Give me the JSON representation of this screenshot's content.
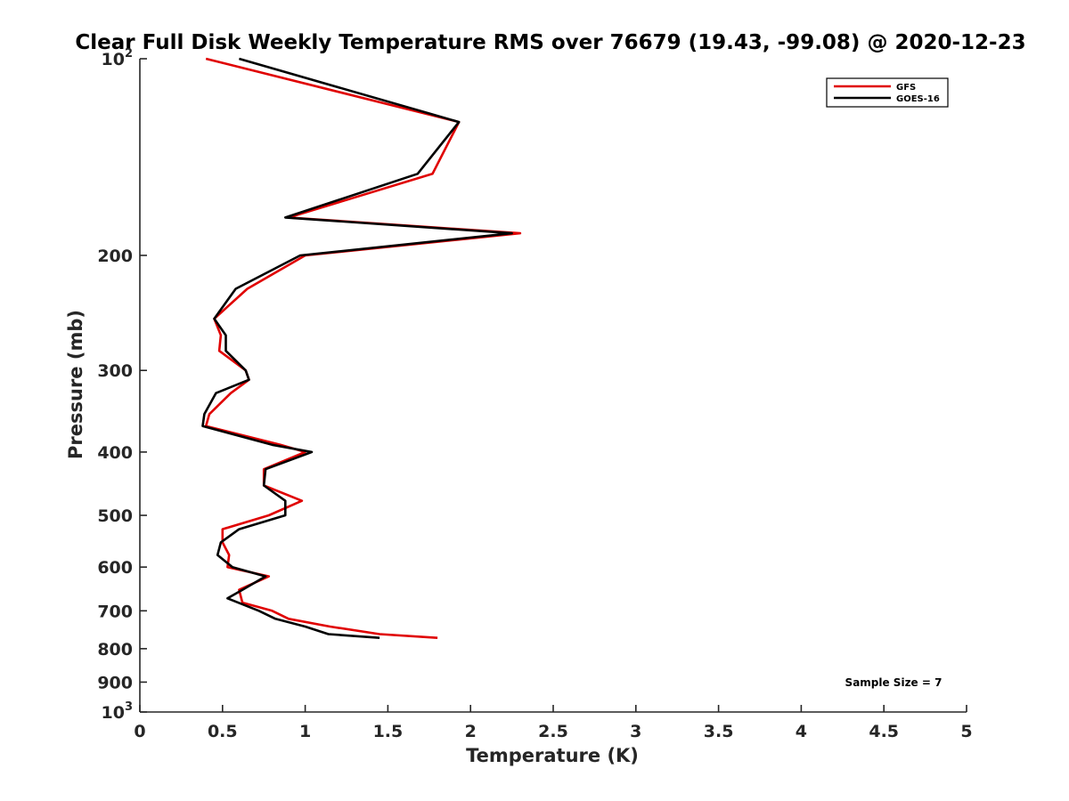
{
  "chart_data": {
    "type": "line",
    "title": "Clear Full Disk Weekly Temperature RMS over 76679 (19.43, -99.08) @ 2020-12-23",
    "xlabel": "Temperature (K)",
    "ylabel": "Pressure (mb)",
    "xlim": [
      0,
      5
    ],
    "ylim": [
      100,
      1000
    ],
    "y_scale": "log",
    "y_reversed": true,
    "grid": false,
    "legend_position": "top-right",
    "x_ticks": [
      0,
      0.5,
      1,
      1.5,
      2,
      2.5,
      3,
      3.5,
      4,
      4.5,
      5
    ],
    "x_tick_labels": [
      "0",
      "0.5",
      "1",
      "1.5",
      "2",
      "2.5",
      "3",
      "3.5",
      "4",
      "4.5",
      "5"
    ],
    "y_ticks": [
      100,
      200,
      300,
      400,
      500,
      600,
      700,
      800,
      900,
      1000
    ],
    "y_tick_labels": [
      {
        "base": "10",
        "exp": "2"
      },
      {
        "base": "200",
        "exp": ""
      },
      {
        "base": "300",
        "exp": ""
      },
      {
        "base": "400",
        "exp": ""
      },
      {
        "base": "500",
        "exp": ""
      },
      {
        "base": "600",
        "exp": ""
      },
      {
        "base": "700",
        "exp": ""
      },
      {
        "base": "800",
        "exp": ""
      },
      {
        "base": "900",
        "exp": ""
      },
      {
        "base": "10",
        "exp": "3"
      }
    ],
    "annotation": "Sample Size = 7",
    "series": [
      {
        "name": "GFS",
        "color": "#e00000",
        "points": [
          [
            0.4,
            100
          ],
          [
            1.93,
            125
          ],
          [
            1.77,
            150
          ],
          [
            0.9,
            175
          ],
          [
            2.3,
            185
          ],
          [
            1.0,
            200
          ],
          [
            0.65,
            225
          ],
          [
            0.45,
            250
          ],
          [
            0.49,
            265
          ],
          [
            0.48,
            280
          ],
          [
            0.64,
            300
          ],
          [
            0.66,
            310
          ],
          [
            0.55,
            325
          ],
          [
            0.42,
            350
          ],
          [
            0.4,
            365
          ],
          [
            0.85,
            390
          ],
          [
            1.0,
            400
          ],
          [
            0.75,
            425
          ],
          [
            0.75,
            450
          ],
          [
            0.98,
            475
          ],
          [
            0.78,
            500
          ],
          [
            0.5,
            525
          ],
          [
            0.5,
            550
          ],
          [
            0.54,
            575
          ],
          [
            0.53,
            600
          ],
          [
            0.78,
            620
          ],
          [
            0.6,
            650
          ],
          [
            0.62,
            680
          ],
          [
            0.8,
            700
          ],
          [
            0.9,
            720
          ],
          [
            1.15,
            740
          ],
          [
            1.45,
            760
          ],
          [
            1.8,
            770
          ]
        ]
      },
      {
        "name": "GOES-16",
        "color": "#000000",
        "points": [
          [
            0.6,
            100
          ],
          [
            1.93,
            125
          ],
          [
            1.68,
            150
          ],
          [
            0.88,
            175
          ],
          [
            2.25,
            185
          ],
          [
            0.97,
            200
          ],
          [
            0.58,
            225
          ],
          [
            0.45,
            250
          ],
          [
            0.52,
            265
          ],
          [
            0.52,
            280
          ],
          [
            0.64,
            300
          ],
          [
            0.66,
            310
          ],
          [
            0.46,
            325
          ],
          [
            0.39,
            350
          ],
          [
            0.38,
            365
          ],
          [
            0.8,
            390
          ],
          [
            1.04,
            400
          ],
          [
            0.76,
            425
          ],
          [
            0.75,
            450
          ],
          [
            0.88,
            475
          ],
          [
            0.88,
            500
          ],
          [
            0.6,
            525
          ],
          [
            0.49,
            550
          ],
          [
            0.47,
            575
          ],
          [
            0.56,
            600
          ],
          [
            0.76,
            620
          ],
          [
            0.62,
            650
          ],
          [
            0.53,
            670
          ],
          [
            0.72,
            700
          ],
          [
            0.82,
            720
          ],
          [
            1.0,
            740
          ],
          [
            1.14,
            760
          ],
          [
            1.45,
            770
          ]
        ]
      }
    ]
  }
}
